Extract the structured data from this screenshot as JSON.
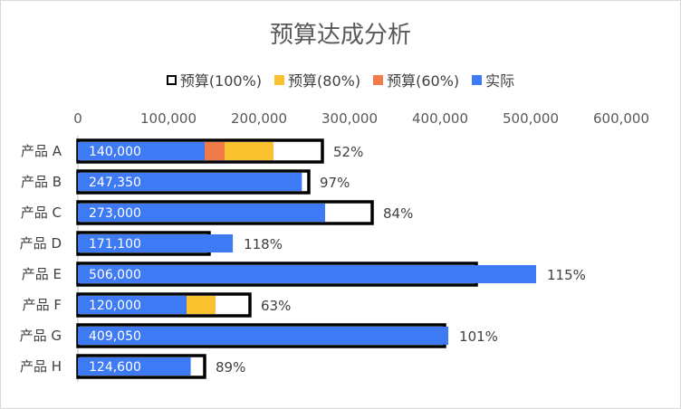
{
  "chart_data": {
    "type": "bar",
    "title": "预算达成分析",
    "categories": [
      "产品 A",
      "产品 B",
      "产品 C",
      "产品 D",
      "产品 E",
      "产品 F",
      "产品 G",
      "产品 H"
    ],
    "xlim": [
      0,
      600000
    ],
    "x_ticks": [
      "0",
      "100,000",
      "200,000",
      "300,000",
      "400,000",
      "500,000",
      "600,000"
    ],
    "budget": [
      270000,
      255000,
      325000,
      145000,
      440000,
      190000,
      405000,
      140000
    ],
    "series": [
      {
        "name": "预算(100%)",
        "color": "#000000",
        "style": "outline",
        "values": [
          270000,
          255000,
          325000,
          145000,
          440000,
          190000,
          405000,
          140000
        ]
      },
      {
        "name": "预算(80%)",
        "color": "#F9C22E",
        "values": [
          216000,
          204000,
          260000,
          116000,
          352000,
          152000,
          324000,
          112000
        ]
      },
      {
        "name": "预算(60%)",
        "color": "#F07A4A",
        "values": [
          162000,
          153000,
          195000,
          87000,
          264000,
          114000,
          243000,
          84000
        ]
      },
      {
        "name": "实际",
        "color": "#3F7AF5",
        "values": [
          140000,
          247350,
          273000,
          171100,
          506000,
          120000,
          409050,
          124600
        ]
      }
    ],
    "value_labels": [
      "140,000",
      "247,350",
      "273,000",
      "171,100",
      "506,000",
      "120,000",
      "409,050",
      "124,600"
    ],
    "percent_labels": [
      "52%",
      "97%",
      "84%",
      "118%",
      "115%",
      "63%",
      "101%",
      "89%"
    ],
    "legend_position": "top",
    "grid": false
  }
}
